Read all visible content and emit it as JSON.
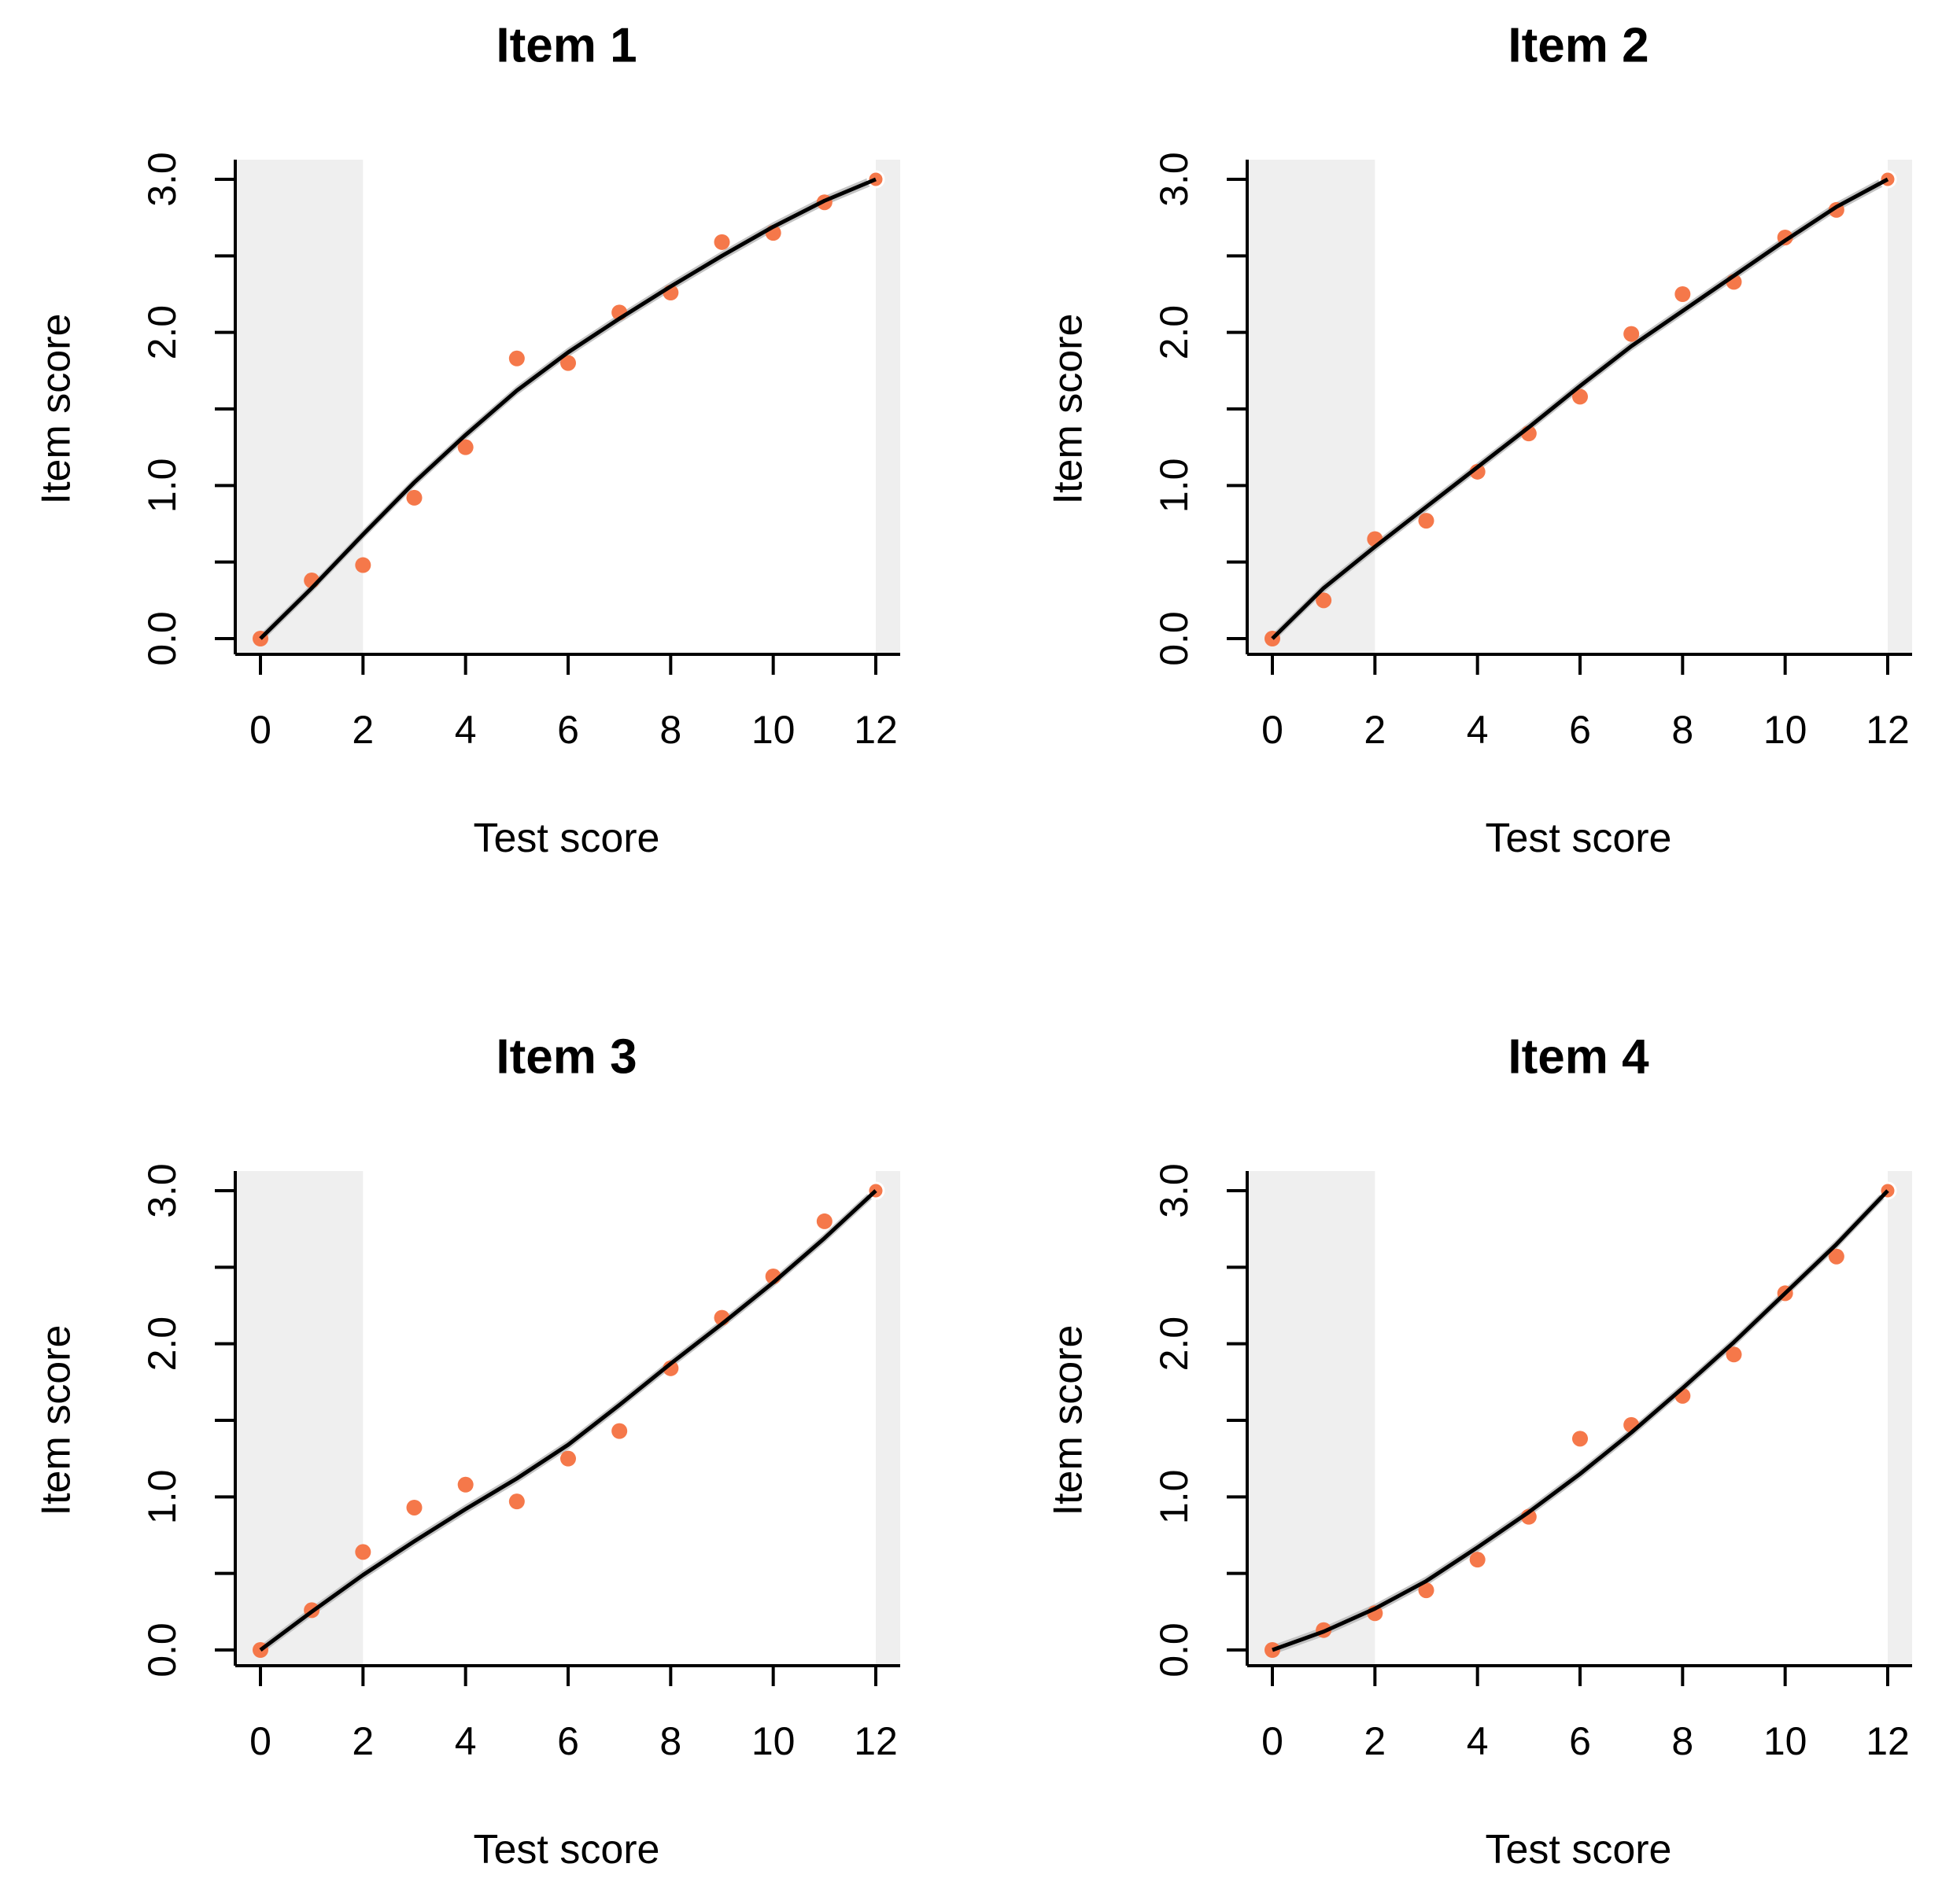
{
  "chart_data": [
    {
      "type": "scatter",
      "title": "Item 1",
      "xlabel": "Test score",
      "ylabel": "Item score",
      "xlim": [
        0,
        12
      ],
      "ylim": [
        0,
        3
      ],
      "xticks": [
        0,
        2,
        4,
        6,
        8,
        10,
        12
      ],
      "xtick_labels": [
        "0",
        "2",
        "4",
        "6",
        "8",
        "10",
        "12"
      ],
      "yticks": [
        0,
        0.5,
        1,
        1.5,
        2,
        2.5,
        3
      ],
      "ytick_labels": [
        "0.0",
        "",
        "1.0",
        "",
        "2.0",
        "",
        "3.0"
      ],
      "shaded_ranges": [
        [
          -0.5,
          2
        ],
        [
          12,
          12.5
        ]
      ],
      "points": {
        "x": [
          0,
          1,
          2,
          3,
          4,
          5,
          6,
          7,
          8,
          9,
          10,
          11,
          12
        ],
        "y": [
          0,
          0.38,
          0.48,
          0.92,
          1.25,
          1.83,
          1.8,
          2.13,
          2.26,
          2.59,
          2.65,
          2.85,
          3.0
        ]
      },
      "fit": {
        "x": [
          0,
          1,
          2,
          3,
          4,
          5,
          6,
          7,
          8,
          9,
          10,
          11,
          12
        ],
        "y": [
          0,
          0.33,
          0.68,
          1.02,
          1.33,
          1.62,
          1.87,
          2.09,
          2.3,
          2.5,
          2.69,
          2.86,
          3.0
        ]
      },
      "colors": {
        "points": "#f5784a",
        "fit": "#000000",
        "band": "#bdbdbd",
        "shade": "#efefef"
      }
    },
    {
      "type": "scatter",
      "title": "Item 2",
      "xlabel": "Test score",
      "ylabel": "Item score",
      "xlim": [
        0,
        12
      ],
      "ylim": [
        0,
        3
      ],
      "xticks": [
        0,
        2,
        4,
        6,
        8,
        10,
        12
      ],
      "xtick_labels": [
        "0",
        "2",
        "4",
        "6",
        "8",
        "10",
        "12"
      ],
      "yticks": [
        0,
        0.5,
        1,
        1.5,
        2,
        2.5,
        3
      ],
      "ytick_labels": [
        "0.0",
        "",
        "1.0",
        "",
        "2.0",
        "",
        "3.0"
      ],
      "shaded_ranges": [
        [
          -0.5,
          2
        ],
        [
          12,
          12.5
        ]
      ],
      "points": {
        "x": [
          0,
          1,
          2,
          3,
          4,
          5,
          6,
          7,
          8,
          9,
          10,
          11,
          12
        ],
        "y": [
          0,
          0.25,
          0.65,
          0.77,
          1.09,
          1.34,
          1.58,
          1.99,
          2.25,
          2.33,
          2.62,
          2.8,
          3.0
        ]
      },
      "fit": {
        "x": [
          0,
          1,
          2,
          3,
          4,
          5,
          6,
          7,
          8,
          9,
          10,
          11,
          12
        ],
        "y": [
          0,
          0.33,
          0.6,
          0.86,
          1.12,
          1.38,
          1.65,
          1.91,
          2.14,
          2.37,
          2.6,
          2.82,
          3.0
        ]
      },
      "colors": {
        "points": "#f5784a",
        "fit": "#000000",
        "band": "#bdbdbd",
        "shade": "#efefef"
      }
    },
    {
      "type": "scatter",
      "title": "Item 3",
      "xlabel": "Test score",
      "ylabel": "Item score",
      "xlim": [
        0,
        12
      ],
      "ylim": [
        0,
        3
      ],
      "xticks": [
        0,
        2,
        4,
        6,
        8,
        10,
        12
      ],
      "xtick_labels": [
        "0",
        "2",
        "4",
        "6",
        "8",
        "10",
        "12"
      ],
      "yticks": [
        0,
        0.5,
        1,
        1.5,
        2,
        2.5,
        3
      ],
      "ytick_labels": [
        "0.0",
        "",
        "1.0",
        "",
        "2.0",
        "",
        "3.0"
      ],
      "shaded_ranges": [
        [
          -0.5,
          2
        ],
        [
          12,
          12.5
        ]
      ],
      "points": {
        "x": [
          0,
          1,
          2,
          3,
          4,
          5,
          6,
          7,
          8,
          9,
          10,
          11,
          12
        ],
        "y": [
          0,
          0.26,
          0.64,
          0.93,
          1.08,
          0.97,
          1.25,
          1.43,
          1.84,
          2.17,
          2.44,
          2.8,
          3.0
        ]
      },
      "fit": {
        "x": [
          0,
          1,
          2,
          3,
          4,
          5,
          6,
          7,
          8,
          9,
          10,
          11,
          12
        ],
        "y": [
          0,
          0.25,
          0.49,
          0.71,
          0.92,
          1.12,
          1.34,
          1.6,
          1.87,
          2.13,
          2.4,
          2.69,
          3.0
        ]
      },
      "colors": {
        "points": "#f5784a",
        "fit": "#000000",
        "band": "#bdbdbd",
        "shade": "#efefef"
      }
    },
    {
      "type": "scatter",
      "title": "Item 4",
      "xlabel": "Test score",
      "ylabel": "Item score",
      "xlim": [
        0,
        12
      ],
      "ylim": [
        0,
        3
      ],
      "xticks": [
        0,
        2,
        4,
        6,
        8,
        10,
        12
      ],
      "xtick_labels": [
        "0",
        "2",
        "4",
        "6",
        "8",
        "10",
        "12"
      ],
      "yticks": [
        0,
        0.5,
        1,
        1.5,
        2,
        2.5,
        3
      ],
      "ytick_labels": [
        "0.0",
        "",
        "1.0",
        "",
        "2.0",
        "",
        "3.0"
      ],
      "shaded_ranges": [
        [
          -0.5,
          2
        ],
        [
          12,
          12.5
        ]
      ],
      "points": {
        "x": [
          0,
          1,
          2,
          3,
          4,
          5,
          6,
          7,
          8,
          9,
          10,
          11,
          12
        ],
        "y": [
          0,
          0.13,
          0.24,
          0.39,
          0.59,
          0.87,
          1.38,
          1.47,
          1.66,
          1.93,
          2.33,
          2.57,
          3.0
        ]
      },
      "fit": {
        "x": [
          0,
          1,
          2,
          3,
          4,
          5,
          6,
          7,
          8,
          9,
          10,
          11,
          12
        ],
        "y": [
          0,
          0.12,
          0.27,
          0.45,
          0.67,
          0.9,
          1.15,
          1.42,
          1.71,
          2.01,
          2.33,
          2.65,
          3.0
        ]
      },
      "colors": {
        "points": "#f5784a",
        "fit": "#000000",
        "band": "#bdbdbd",
        "shade": "#efefef"
      }
    }
  ]
}
